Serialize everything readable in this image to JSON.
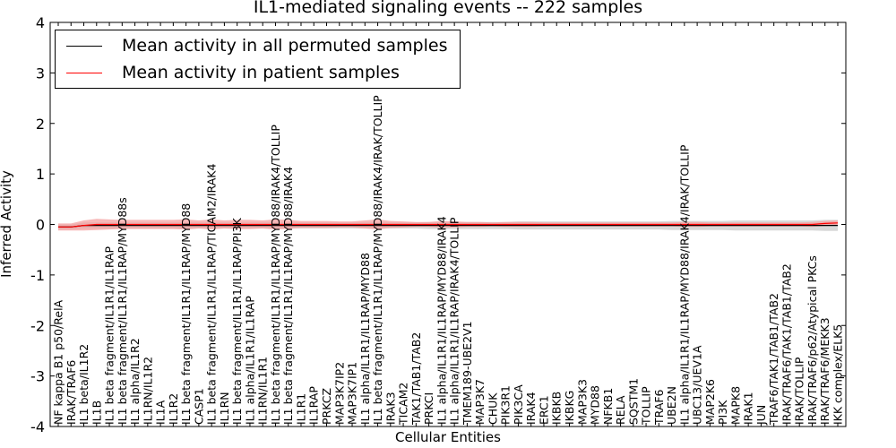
{
  "chart_data": {
    "type": "line",
    "title": "IL1-mediated signaling events -- 222 samples",
    "xlabel": "Cellular Entities",
    "ylabel": "Inferred Activity",
    "ylim": [
      -4,
      4
    ],
    "yticks": [
      -4,
      -3,
      -2,
      -1,
      0,
      1,
      2,
      3,
      4
    ],
    "legend_position": "top-left",
    "categories": [
      "NF kappa B1 p50/RelA",
      "IRAK/TRAF6",
      "IL1 beta/IL1R2",
      "IL1B",
      "IL1 beta fragment/IL1R1/IL1RAP",
      "IL1 beta fragment/IL1R1/IL1RAP/MYD88s",
      "IL1 alpha/IL1R2",
      "IL1RN/IL1R2",
      "IL1A",
      "IL1R2",
      "IL1 beta fragment/IL1R1/IL1RAP/MYD88",
      "CASP1",
      "IL1 beta fragment/IL1R1/IL1RAP/TICAM2/IRAK4",
      "IL1RN",
      "IL1 beta fragment/IL1R1/IL1RAP/PI3K",
      "IL1 alpha/IL1R1/IL1RAP",
      "IL1RN/IL1R1",
      "IL1 beta fragment/IL1R1/IL1RAP/MYD88/IRAK4/TOLLIP",
      "IL1 beta fragment/IL1R1/IL1RAP/MYD88/IRAK4",
      "IL1R1",
      "IL1RAP",
      "PRKCZ",
      "MAP3K7IP2",
      "MAP3K7IP1",
      "IL1 alpha/IL1R1/IL1RAP/MYD88",
      "IL1 beta fragment/IL1R1/IL1RAP/MYD88/IRAK4/IRAK/TOLLIP",
      "IRAK3",
      "TICAM2",
      "TAK1/TAB1/TAB2",
      "PRKCI",
      "IL1 alpha/IL1R1/IL1RAP/MYD88/IRAK4",
      "IL1 alpha/IL1R1/IL1RAP/IRAK4/TOLLIP",
      "TMEM189-UBE2V1",
      "MAP3K7",
      "CHUK",
      "PIK3R1",
      "PIK3CA",
      "IRAK4",
      "ERC1",
      "IKBKB",
      "IKBKG",
      "MAP3K3",
      "MYD88",
      "NFKB1",
      "RELA",
      "SQSTM1",
      "TOLLIP",
      "TRAF6",
      "UBE2N",
      "IL1 alpha/IL1R1/IL1RAP/MYD88/IRAK4/IRAK/TOLLIP",
      "UBC13/UEV1A",
      "MAP2K6",
      "PI3K",
      "MAPK8",
      "IRAK1",
      "JUN",
      "TRAF6/TAK1/TAB1/TAB2",
      "IRAK/TRAF6/TAK1/TAB1/TAB2",
      "IRAK/TOLLIP",
      "IRAK/TRAF6/p62/Atypical PKCs",
      "IRAK/TRAF6/MEKK3",
      "IKK complex/ELK5"
    ],
    "series": [
      {
        "name": "Mean activity in all permuted samples",
        "color": "#000000",
        "band_color": "#c8c8c8",
        "values": [
          -0.05,
          -0.05,
          -0.02,
          -0.02,
          -0.02,
          -0.02,
          -0.02,
          -0.02,
          -0.02,
          -0.02,
          -0.02,
          -0.02,
          -0.02,
          -0.02,
          -0.02,
          -0.02,
          -0.02,
          -0.02,
          -0.02,
          -0.02,
          -0.02,
          -0.02,
          -0.02,
          -0.02,
          -0.02,
          -0.02,
          -0.02,
          -0.02,
          -0.02,
          -0.02,
          -0.02,
          -0.02,
          -0.02,
          -0.02,
          -0.02,
          -0.02,
          -0.02,
          -0.02,
          -0.02,
          -0.02,
          -0.02,
          -0.02,
          -0.02,
          -0.02,
          -0.02,
          -0.02,
          -0.02,
          -0.02,
          -0.02,
          -0.02,
          -0.02,
          -0.02,
          -0.02,
          -0.02,
          -0.02,
          -0.02,
          -0.02,
          -0.02,
          -0.02,
          -0.02,
          -0.02,
          -0.02
        ],
        "band_halfwidth": [
          0.05,
          0.05,
          0.06,
          0.06,
          0.06,
          0.06,
          0.06,
          0.06,
          0.06,
          0.06,
          0.06,
          0.06,
          0.06,
          0.06,
          0.06,
          0.06,
          0.06,
          0.06,
          0.06,
          0.06,
          0.06,
          0.06,
          0.06,
          0.06,
          0.06,
          0.06,
          0.06,
          0.06,
          0.06,
          0.07,
          0.07,
          0.07,
          0.07,
          0.07,
          0.07,
          0.07,
          0.08,
          0.08,
          0.08,
          0.08,
          0.08,
          0.08,
          0.08,
          0.08,
          0.08,
          0.08,
          0.08,
          0.08,
          0.09,
          0.09,
          0.09,
          0.09,
          0.09,
          0.1,
          0.1,
          0.1,
          0.1,
          0.1,
          0.1,
          0.1,
          0.11,
          0.11
        ]
      },
      {
        "name": "Mean activity in patient samples",
        "color": "#ff0000",
        "band_color": "#f4a0a0",
        "values": [
          -0.05,
          -0.05,
          -0.02,
          0.0,
          0.0,
          0.0,
          0.0,
          0.0,
          0.0,
          0.0,
          0.0,
          0.0,
          0.0,
          0.0,
          0.0,
          0.0,
          0.0,
          0.0,
          0.0,
          0.0,
          0.0,
          0.0,
          0.0,
          0.0,
          0.0,
          0.0,
          0.0,
          0.0,
          0.0,
          0.0,
          0.0,
          0.0,
          0.0,
          0.0,
          0.0,
          0.0,
          0.0,
          0.0,
          0.0,
          0.0,
          0.0,
          0.0,
          0.0,
          0.0,
          0.0,
          0.0,
          0.0,
          0.0,
          0.0,
          0.0,
          0.0,
          0.0,
          0.0,
          0.0,
          0.0,
          0.0,
          0.0,
          0.0,
          0.0,
          0.0,
          0.02,
          0.03
        ],
        "band_halfwidth": [
          0.07,
          0.07,
          0.1,
          0.11,
          0.1,
          0.09,
          0.09,
          0.09,
          0.09,
          0.09,
          0.1,
          0.08,
          0.1,
          0.08,
          0.09,
          0.09,
          0.08,
          0.1,
          0.09,
          0.07,
          0.07,
          0.07,
          0.06,
          0.06,
          0.08,
          0.1,
          0.07,
          0.06,
          0.05,
          0.05,
          0.07,
          0.06,
          0.05,
          0.05,
          0.04,
          0.05,
          0.05,
          0.05,
          0.04,
          0.04,
          0.04,
          0.04,
          0.04,
          0.04,
          0.04,
          0.04,
          0.04,
          0.04,
          0.04,
          0.05,
          0.05,
          0.04,
          0.04,
          0.04,
          0.04,
          0.04,
          0.04,
          0.04,
          0.04,
          0.05,
          0.05,
          0.05
        ]
      }
    ]
  }
}
